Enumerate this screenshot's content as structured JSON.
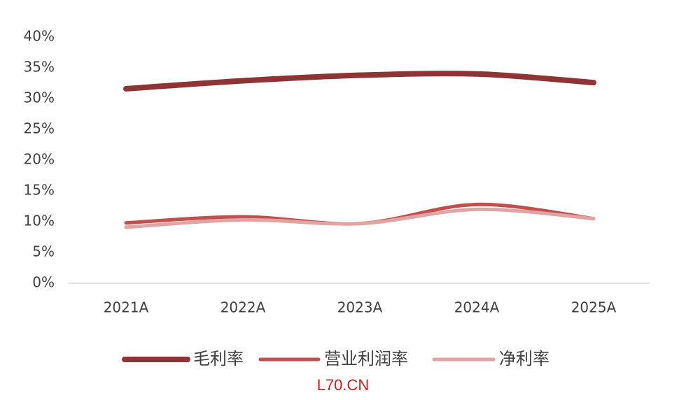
{
  "chart_data": {
    "type": "line",
    "categories": [
      "2021A",
      "2022A",
      "2023A",
      "2024A",
      "2025A"
    ],
    "series": [
      {
        "name": "毛利率",
        "color": "#8e3434",
        "values": [
          31.6,
          32.9,
          33.8,
          34.0,
          32.6
        ]
      },
      {
        "name": "营业利润率",
        "color": "#c0504d",
        "values": [
          9.8,
          10.8,
          9.7,
          12.8,
          10.5
        ]
      },
      {
        "name": "净利率",
        "color": "#e2a3a3",
        "values": [
          9.1,
          10.3,
          9.7,
          12.0,
          10.5
        ]
      }
    ],
    "ylim": [
      0,
      40
    ],
    "yticks": [
      {
        "value": 0,
        "label": "0%"
      },
      {
        "value": 5,
        "label": "5%"
      },
      {
        "value": 10,
        "label": "10%"
      },
      {
        "value": 15,
        "label": "15%"
      },
      {
        "value": 20,
        "label": "20%"
      },
      {
        "value": 25,
        "label": "25%"
      },
      {
        "value": 30,
        "label": "30%"
      },
      {
        "value": 35,
        "label": "35%"
      },
      {
        "value": 40,
        "label": "40%"
      }
    ],
    "annotation": "L70.CN"
  }
}
